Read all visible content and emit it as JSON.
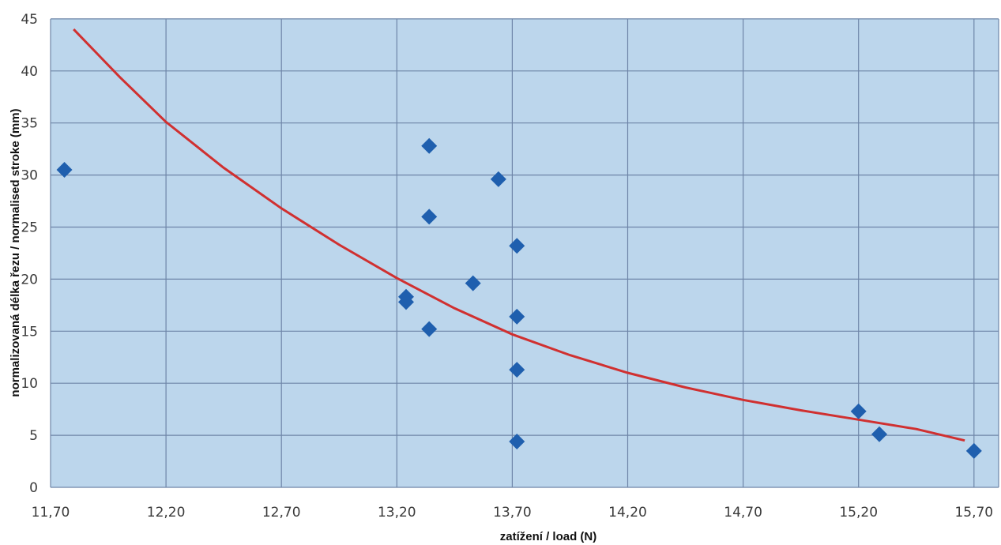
{
  "chart_data": {
    "type": "scatter",
    "title": "",
    "xlabel": "zatížení / load (N)",
    "ylabel": "normalizovaná délka řezu / normalised stroke (mm)",
    "xlim": [
      11.7,
      15.75
    ],
    "ylim": [
      0,
      45
    ],
    "x_ticks": [
      "11,70",
      "12,20",
      "12,70",
      "13,20",
      "13,70",
      "14,20",
      "14,70",
      "15,20",
      "15,70"
    ],
    "y_ticks": [
      "0",
      "5",
      "10",
      "15",
      "20",
      "25",
      "30",
      "35",
      "40",
      "45"
    ],
    "grid": true,
    "legend": "none",
    "series": [
      {
        "marker": "diamond",
        "color": "#1f5fae",
        "points": [
          [
            11.76,
            30.5
          ],
          [
            13.24,
            18.3
          ],
          [
            13.24,
            17.8
          ],
          [
            13.34,
            32.8
          ],
          [
            13.34,
            26.0
          ],
          [
            13.34,
            15.2
          ],
          [
            13.53,
            19.6
          ],
          [
            13.64,
            29.6
          ],
          [
            13.72,
            23.2
          ],
          [
            13.72,
            16.4
          ],
          [
            13.72,
            11.3
          ],
          [
            13.72,
            4.4
          ],
          [
            15.2,
            7.3
          ],
          [
            15.29,
            5.1
          ],
          [
            15.7,
            3.5
          ]
        ]
      }
    ],
    "trendline": {
      "type": "power",
      "color": "#d03030",
      "points": [
        [
          11.8,
          44.0
        ],
        [
          12.0,
          39.4
        ],
        [
          12.2,
          35.1
        ],
        [
          12.45,
          30.7
        ],
        [
          12.7,
          26.8
        ],
        [
          12.95,
          23.3
        ],
        [
          13.2,
          20.1
        ],
        [
          13.45,
          17.2
        ],
        [
          13.7,
          14.7
        ],
        [
          13.95,
          12.7
        ],
        [
          14.2,
          11.0
        ],
        [
          14.45,
          9.6
        ],
        [
          14.7,
          8.4
        ],
        [
          14.95,
          7.4
        ],
        [
          15.2,
          6.5
        ],
        [
          15.45,
          5.6
        ],
        [
          15.66,
          4.5
        ]
      ]
    },
    "colors": {
      "plot_bg": "#bcd6ec",
      "grid": "#6e85a8"
    }
  }
}
